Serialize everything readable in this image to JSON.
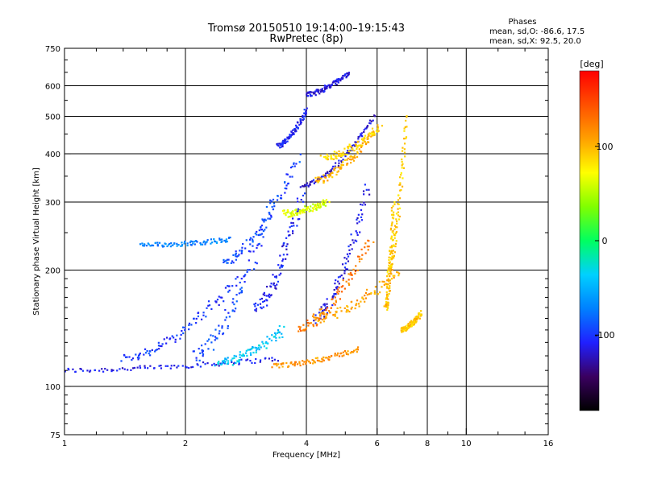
{
  "header": {
    "title_line1": "Tromsø 20150510 19:14:00–19:15:43",
    "title_line2": "RwPretec (8p)"
  },
  "stats": {
    "heading": "Phases",
    "line_o": "mean, sd,O: -86.6, 17.5",
    "line_x": "mean, sd,X:  92.5, 20.0"
  },
  "colorbar": {
    "unit_label": "[deg]",
    "ticks": [
      {
        "value": 100,
        "label": "100"
      },
      {
        "value": 0,
        "label": "0"
      },
      {
        "value": -100,
        "label": "-100"
      }
    ],
    "range": [
      -180,
      180
    ],
    "stops": [
      "#000000",
      "#3a0060",
      "#2020ff",
      "#0080ff",
      "#00d0ff",
      "#00ff60",
      "#80ff00",
      "#ffff00",
      "#ffa000",
      "#ff5000",
      "#ff0000"
    ]
  },
  "chart_data": {
    "type": "scatter",
    "title": "Tromsø 20150510 19:14:00–19:15:43",
    "subtitle": "RwPretec (8p)",
    "xlabel": "Frequency [MHz]",
    "ylabel": "Stationary phase Virtual Height [km]",
    "xscale": "log",
    "yscale": "log",
    "xlim": [
      1,
      16
    ],
    "ylim": [
      75,
      750
    ],
    "x_ticks": [
      {
        "value": 1,
        "label": "1"
      },
      {
        "value": 2,
        "label": "2"
      },
      {
        "value": 4,
        "label": "4"
      },
      {
        "value": 6,
        "label": "6"
      },
      {
        "value": 8,
        "label": "8"
      },
      {
        "value": 10,
        "label": "10"
      },
      {
        "value": 16,
        "label": "16"
      }
    ],
    "y_ticks": [
      {
        "value": 75,
        "label": "75"
      },
      {
        "value": 100,
        "label": "100"
      },
      {
        "value": 200,
        "label": "200"
      },
      {
        "value": 300,
        "label": "300"
      },
      {
        "value": 400,
        "label": "400"
      },
      {
        "value": 500,
        "label": "500"
      },
      {
        "value": 600,
        "label": "600"
      },
      {
        "value": 750,
        "label": "750"
      }
    ],
    "major_gridlines_x": [
      2,
      4,
      6,
      8,
      10
    ],
    "major_gridlines_y": [
      100,
      200,
      300,
      400,
      500,
      600
    ],
    "grid": true,
    "color_scale": "phase [deg]",
    "series": [
      {
        "traces": [
          {
            "x0": 1.0,
            "x1": 3.4,
            "h0": 110,
            "h1": 118,
            "phase": -112,
            "spread": 0.02
          },
          {
            "x0": 1.4,
            "x1": 2.7,
            "h0": 118,
            "h1": 190,
            "phase": -100,
            "spread": 0.04
          },
          {
            "x0": 2.1,
            "x1": 3.3,
            "h0": 120,
            "h1": 300,
            "phase": -95,
            "spread": 0.05
          },
          {
            "x0": 2.5,
            "x1": 3.8,
            "h0": 210,
            "h1": 390,
            "phase": -92,
            "spread": 0.04
          },
          {
            "x0": 1.55,
            "x1": 2.6,
            "h0": 232,
            "h1": 240,
            "phase": -70,
            "spread": 0.02
          },
          {
            "x0": 3.4,
            "x1": 4.0,
            "h0": 420,
            "h1": 520,
            "phase": -108,
            "spread": 0.02
          },
          {
            "x0": 4.0,
            "x1": 5.1,
            "h0": 570,
            "h1": 650,
            "phase": -115,
            "spread": 0.02
          },
          {
            "x0": 3.9,
            "x1": 5.9,
            "h0": 330,
            "h1": 500,
            "phase": -118,
            "spread": 0.02
          },
          {
            "x0": 3.0,
            "x1": 3.9,
            "h0": 160,
            "h1": 320,
            "phase": -110,
            "spread": 0.04
          },
          {
            "x0": 4.2,
            "x1": 5.7,
            "h0": 150,
            "h1": 330,
            "phase": -112,
            "spread": 0.04
          },
          {
            "x0": 3.3,
            "x1": 5.4,
            "h0": 113,
            "h1": 125,
            "phase": 115,
            "spread": 0.02
          },
          {
            "x0": 3.8,
            "x1": 5.8,
            "h0": 140,
            "h1": 240,
            "phase": 125,
            "spread": 0.04
          },
          {
            "x0": 4.2,
            "x1": 6.8,
            "h0": 150,
            "h1": 200,
            "phase": 105,
            "spread": 0.04
          },
          {
            "x0": 4.2,
            "x1": 5.9,
            "h0": 340,
            "h1": 460,
            "phase": 100,
            "spread": 0.03
          },
          {
            "x0": 4.4,
            "x1": 6.1,
            "h0": 390,
            "h1": 470,
            "phase": 88,
            "spread": 0.03
          },
          {
            "x0": 6.3,
            "x1": 6.6,
            "h0": 160,
            "h1": 300,
            "phase": 95,
            "spread": 0.02
          },
          {
            "x0": 6.9,
            "x1": 7.7,
            "h0": 140,
            "h1": 155,
            "phase": 92,
            "spread": 0.02
          },
          {
            "x0": 6.4,
            "x1": 7.1,
            "h0": 200,
            "h1": 500,
            "phase": 90,
            "spread": 0.02
          },
          {
            "x0": 3.5,
            "x1": 4.5,
            "h0": 280,
            "h1": 300,
            "phase": 60,
            "spread": 0.03
          },
          {
            "x0": 2.4,
            "x1": 3.5,
            "h0": 115,
            "h1": 140,
            "phase": -40,
            "spread": 0.04
          }
        ]
      }
    ]
  }
}
